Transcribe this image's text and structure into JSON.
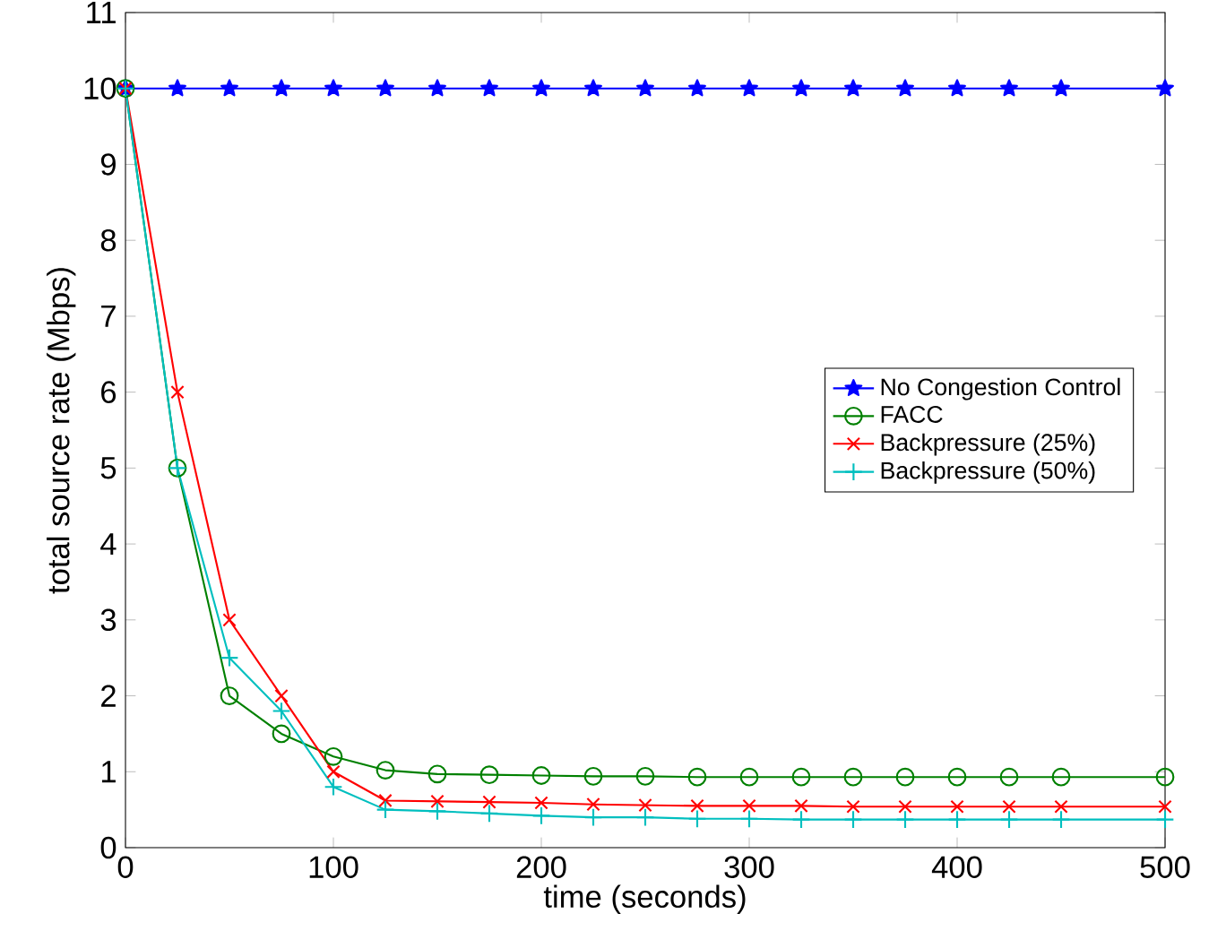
{
  "chart_data": {
    "type": "line",
    "xlabel": "time (seconds)",
    "ylabel": "total source rate (Mbps)",
    "x": [
      0,
      25,
      50,
      75,
      100,
      125,
      150,
      175,
      200,
      225,
      250,
      275,
      300,
      325,
      350,
      375,
      400,
      425,
      450,
      500
    ],
    "series": [
      {
        "name": "No Congestion Control",
        "color": "#0000ff",
        "marker": "star",
        "values": [
          10,
          10,
          10,
          10,
          10,
          10,
          10,
          10,
          10,
          10,
          10,
          10,
          10,
          10,
          10,
          10,
          10,
          10,
          10,
          10
        ]
      },
      {
        "name": "FACC",
        "color": "#008000",
        "marker": "circle",
        "values": [
          10,
          5,
          2,
          1.5,
          1.2,
          1.02,
          0.97,
          0.96,
          0.95,
          0.94,
          0.94,
          0.93,
          0.93,
          0.93,
          0.93,
          0.93,
          0.93,
          0.93,
          0.93,
          0.93
        ]
      },
      {
        "name": "Backpressure (25%)",
        "color": "#ff0000",
        "marker": "cross",
        "values": [
          10,
          6,
          3,
          2,
          1.0,
          0.62,
          0.61,
          0.6,
          0.59,
          0.57,
          0.56,
          0.55,
          0.55,
          0.55,
          0.54,
          0.54,
          0.54,
          0.54,
          0.54,
          0.54
        ]
      },
      {
        "name": "Backpressure (50%)",
        "color": "#00bfbf",
        "marker": "plus",
        "values": [
          10,
          5,
          2.5,
          1.8,
          0.8,
          0.5,
          0.48,
          0.45,
          0.42,
          0.4,
          0.4,
          0.38,
          0.38,
          0.37,
          0.37,
          0.37,
          0.37,
          0.37,
          0.37,
          0.37
        ]
      }
    ],
    "xlim": [
      0,
      500
    ],
    "ylim": [
      0,
      11
    ],
    "xticks": [
      0,
      100,
      200,
      300,
      400,
      500
    ],
    "yticks": [
      0,
      1,
      2,
      3,
      4,
      5,
      6,
      7,
      8,
      9,
      10,
      11
    ],
    "legend": "right",
    "grid": false,
    "line_style": "solid"
  }
}
